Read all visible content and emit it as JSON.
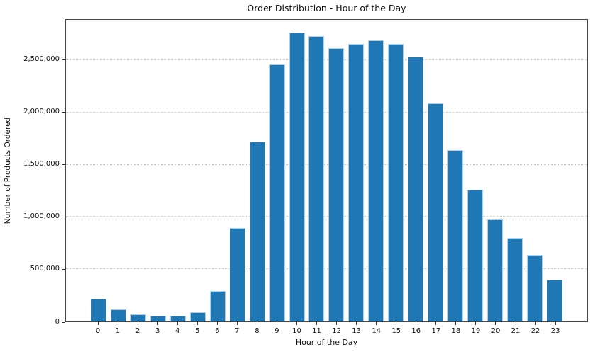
{
  "chart_data": {
    "type": "bar",
    "title": "Order Distribution - Hour of the Day",
    "xlabel": "Hour of the Day",
    "ylabel": "Number of Products Ordered",
    "categories": [
      "0",
      "1",
      "2",
      "3",
      "4",
      "5",
      "6",
      "7",
      "8",
      "9",
      "10",
      "11",
      "12",
      "13",
      "14",
      "15",
      "16",
      "17",
      "18",
      "19",
      "20",
      "21",
      "22",
      "23"
    ],
    "values": [
      215000,
      113000,
      70000,
      51000,
      55000,
      88000,
      291000,
      891000,
      1720000,
      2456000,
      2765000,
      2732000,
      2616000,
      2655000,
      2690000,
      2658000,
      2535000,
      2089000,
      1637000,
      1260000,
      975000,
      797000,
      636000,
      403000
    ],
    "ylim": [
      0,
      2885000
    ],
    "yticks": [
      0,
      500000,
      1000000,
      1500000,
      2000000,
      2500000
    ],
    "ytick_labels": [
      "0",
      "500,000",
      "1,000,000",
      "1,500,000",
      "2,000,000",
      "2,500,000"
    ],
    "grid": "horizontal-dotted",
    "legend": "none",
    "bar_color": "#1f77b4",
    "bar_edge_color": "#aed0e8",
    "gridline_color": "#c9c9c9",
    "spine_color": "#454545"
  }
}
